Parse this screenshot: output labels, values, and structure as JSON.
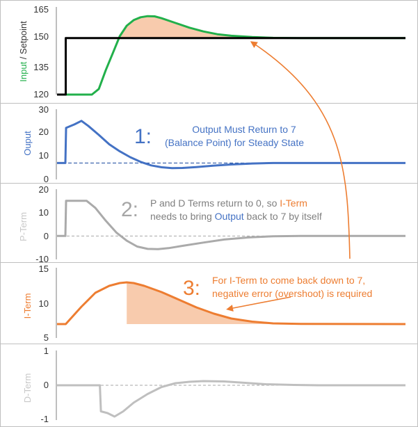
{
  "colors": {
    "input": "#22b04b",
    "setpoint": "#000000",
    "output": "#4472c4",
    "pterm": "#aaaaaa",
    "iterm": "#ed7d31",
    "dterm": "#bfbfbf",
    "fill": "#f8cbad",
    "axis": "#7f7f7f",
    "zero": "#a6a6a6"
  },
  "chart_data": [
    {
      "type": "line",
      "ylabel": {
        "first": "Input",
        "sep": " / ",
        "second": "Setpoint"
      },
      "yticks": [
        "120",
        "135",
        "150",
        "165"
      ],
      "ylim": [
        120,
        165
      ],
      "xlim": [
        0,
        100
      ],
      "series": [
        {
          "name": "Input",
          "points": [
            [
              0,
              120
            ],
            [
              10,
              120
            ],
            [
              12,
              123
            ],
            [
              14,
              133
            ],
            [
              16,
              142
            ],
            [
              18,
              151
            ],
            [
              20,
              156.5
            ],
            [
              22,
              159.5
            ],
            [
              24,
              161
            ],
            [
              26,
              161.6
            ],
            [
              28,
              161.5
            ],
            [
              30,
              160.5
            ],
            [
              34,
              158
            ],
            [
              38,
              155.5
            ],
            [
              42,
              153.5
            ],
            [
              46,
              152
            ],
            [
              50,
              151.2
            ],
            [
              56,
              150.5
            ],
            [
              62,
              150.1
            ],
            [
              70,
              150
            ],
            [
              100,
              150
            ]
          ]
        },
        {
          "name": "Setpoint",
          "points": [
            [
              0,
              120
            ],
            [
              2.5,
              120
            ],
            [
              2.5,
              150
            ],
            [
              100,
              150
            ]
          ]
        }
      ],
      "fill_region": "between Input and Setpoint where Input > Setpoint"
    },
    {
      "type": "line",
      "ylabel": "Ouput",
      "yticks": [
        "0",
        "10",
        "20",
        "30"
      ],
      "ylim": [
        0,
        30
      ],
      "reference_line": 7,
      "series": [
        {
          "name": "Output",
          "points": [
            [
              0,
              7
            ],
            [
              2.4,
              7
            ],
            [
              2.6,
              22
            ],
            [
              5,
              23.5
            ],
            [
              7,
              25
            ],
            [
              9,
              22.8
            ],
            [
              12,
              19
            ],
            [
              15,
              15
            ],
            [
              18,
              12
            ],
            [
              21,
              9.5
            ],
            [
              24,
              7.5
            ],
            [
              27,
              6
            ],
            [
              30,
              5.2
            ],
            [
              33,
              4.8
            ],
            [
              36,
              4.9
            ],
            [
              40,
              5.3
            ],
            [
              45,
              5.9
            ],
            [
              50,
              6.4
            ],
            [
              56,
              6.8
            ],
            [
              62,
              7
            ],
            [
              100,
              7
            ]
          ]
        }
      ],
      "annotation": {
        "number": "1:",
        "line1": "Output Must Return to 7",
        "line2": "(Balance Point) for Steady State"
      }
    },
    {
      "type": "line",
      "ylabel": "P-Term",
      "yticks": [
        "-10",
        "0",
        "10",
        "20"
      ],
      "ylim": [
        -10,
        20
      ],
      "series": [
        {
          "name": "P-Term",
          "points": [
            [
              0,
              0
            ],
            [
              2.4,
              0
            ],
            [
              2.6,
              15
            ],
            [
              8.5,
              15
            ],
            [
              11,
              12
            ],
            [
              14,
              6.5
            ],
            [
              17,
              1.5
            ],
            [
              20,
              -2
            ],
            [
              23,
              -4.5
            ],
            [
              26,
              -5.5
            ],
            [
              29,
              -5.6
            ],
            [
              32,
              -5.2
            ],
            [
              36,
              -4.2
            ],
            [
              42,
              -2.8
            ],
            [
              48,
              -1.5
            ],
            [
              55,
              -0.6
            ],
            [
              62,
              -0.1
            ],
            [
              70,
              0
            ],
            [
              100,
              0
            ]
          ]
        }
      ],
      "annotation": {
        "number": "2:",
        "line1_a": "P and D Terms return to 0, so ",
        "line1_b": "I-Term",
        "line2_a": "needs to bring ",
        "line2_b": "Output",
        "line2_c": " back to 7 by itself"
      }
    },
    {
      "type": "line",
      "ylabel": "I-Term",
      "yticks": [
        "5",
        "10",
        "15"
      ],
      "ylim": [
        5,
        15
      ],
      "series": [
        {
          "name": "I-Term",
          "points": [
            [
              0,
              7
            ],
            [
              2.5,
              7
            ],
            [
              7,
              9.5
            ],
            [
              11,
              11.5
            ],
            [
              15,
              12.5
            ],
            [
              18,
              12.9
            ],
            [
              20,
              13
            ],
            [
              22,
              12.9
            ],
            [
              25,
              12.5
            ],
            [
              30,
              11.6
            ],
            [
              35,
              10.5
            ],
            [
              40,
              9.4
            ],
            [
              45,
              8.5
            ],
            [
              50,
              7.8
            ],
            [
              56,
              7.35
            ],
            [
              62,
              7.1
            ],
            [
              70,
              7.02
            ],
            [
              100,
              7
            ]
          ]
        }
      ],
      "fill_region": "under I-Term above 7 from x=20 to x=100",
      "annotation": {
        "number": "3:",
        "line1": "For I-Term to come back down to 7,",
        "line2": "negative error (overshoot) is required"
      }
    },
    {
      "type": "line",
      "ylabel": "D-Term",
      "yticks": [
        "-1",
        "0",
        "1"
      ],
      "ylim": [
        -1,
        1
      ],
      "series": [
        {
          "name": "D-Term",
          "points": [
            [
              0,
              0
            ],
            [
              12.3,
              0
            ],
            [
              12.6,
              -0.75
            ],
            [
              14.5,
              -0.8
            ],
            [
              16.5,
              -0.9
            ],
            [
              19,
              -0.75
            ],
            [
              22,
              -0.5
            ],
            [
              26,
              -0.25
            ],
            [
              30,
              -0.05
            ],
            [
              34,
              0.06
            ],
            [
              38,
              0.1
            ],
            [
              42,
              0.12
            ],
            [
              48,
              0.11
            ],
            [
              54,
              0.07
            ],
            [
              60,
              0.03
            ],
            [
              68,
              0.01
            ],
            [
              75,
              0
            ],
            [
              100,
              0
            ]
          ]
        }
      ]
    }
  ]
}
